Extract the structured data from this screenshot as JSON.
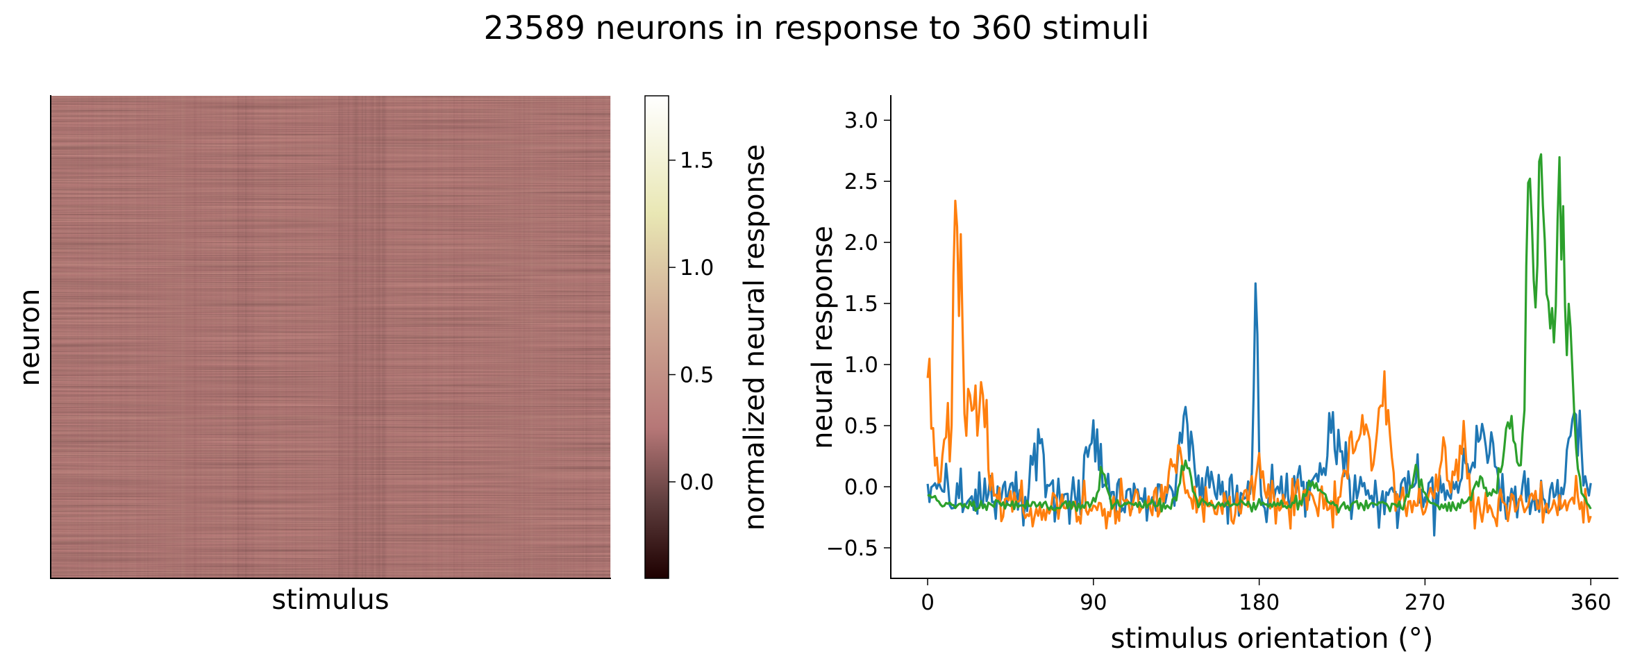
{
  "figure": {
    "title": "23589 neurons in response to 360 stimuli"
  },
  "chart_data": [
    {
      "type": "heatmap",
      "xlabel": "stimulus",
      "ylabel": "neuron",
      "n_neurons": 23589,
      "n_stimuli": 360,
      "colormap": "pink",
      "colorbar": {
        "label": "normalized neural response",
        "range": [
          -0.45,
          1.8
        ],
        "ticks": [
          "0.0",
          "0.5",
          "1.0",
          "1.5"
        ],
        "tick_values": [
          0.0,
          0.5,
          1.0,
          1.5
        ],
        "colors": [
          "#1e0000",
          "#5e3d3d",
          "#b67777",
          "#cfa994",
          "#e9e7b4",
          "#ffffff"
        ],
        "color_stops": [
          -0.45,
          -0.1,
          0.25,
          0.75,
          1.25,
          1.8
        ]
      },
      "typical_value": 0.3,
      "low_band_stimuli": [
        [
          120,
          130
        ],
        [
          185,
          215
        ]
      ]
    },
    {
      "type": "line",
      "xlabel": "stimulus orientation (°)",
      "ylabel": "neural response",
      "xlim": [
        -20,
        375
      ],
      "ylim": [
        -0.75,
        3.2
      ],
      "xticks": [
        0,
        90,
        180,
        270,
        360
      ],
      "xtick_labels": [
        "0",
        "90",
        "180",
        "270",
        "360"
      ],
      "yticks": [
        -0.5,
        0.0,
        0.5,
        1.0,
        1.5,
        2.0,
        2.5,
        3.0
      ],
      "ytick_labels": [
        "−0.5",
        "0.0",
        "0.5",
        "1.0",
        "1.5",
        "2.0",
        "2.5",
        "3.0"
      ],
      "x_range": [
        0,
        360
      ],
      "series": [
        {
          "color": "#1f77b4",
          "baseline": -0.05,
          "noise": 0.22,
          "peaks": [
            [
              2,
              0.12,
              4
            ],
            [
              60,
              0.35,
              3
            ],
            [
              90,
              0.65,
              3
            ],
            [
              140,
              0.55,
              3
            ],
            [
              178,
              1.6,
              1
            ],
            [
              220,
              0.5,
              5
            ],
            [
              300,
              0.5,
              6
            ],
            [
              352,
              0.75,
              3
            ]
          ]
        },
        {
          "color": "#ff7f0e",
          "baseline": -0.15,
          "noise": 0.17,
          "peaks": [
            [
              0,
              0.95,
              3
            ],
            [
              10,
              0.7,
              2
            ],
            [
              15,
              2.8,
              1
            ],
            [
              18,
              2.3,
              1
            ],
            [
              24,
              1.1,
              3
            ],
            [
              31,
              0.9,
              2
            ],
            [
              135,
              0.45,
              3
            ],
            [
              180,
              0.3,
              4
            ],
            [
              235,
              0.7,
              6
            ],
            [
              248,
              0.9,
              3
            ],
            [
              280,
              0.45,
              3
            ],
            [
              290,
              0.55,
              3
            ]
          ]
        },
        {
          "color": "#2ca02c",
          "baseline": -0.15,
          "noise": 0.05,
          "peaks": [
            [
              0,
              0.1,
              3
            ],
            [
              95,
              0.3,
              2
            ],
            [
              140,
              0.35,
              3
            ],
            [
              210,
              0.2,
              4
            ],
            [
              265,
              0.3,
              3
            ],
            [
              300,
              0.2,
              4
            ],
            [
              316,
              0.7,
              4
            ],
            [
              327,
              3.0,
              2
            ],
            [
              333,
              2.8,
              2
            ],
            [
              338,
              1.4,
              2
            ],
            [
              343,
              1.9,
              2
            ],
            [
              347,
              1.4,
              3
            ],
            [
              352,
              0.2,
              3
            ]
          ]
        }
      ]
    }
  ]
}
